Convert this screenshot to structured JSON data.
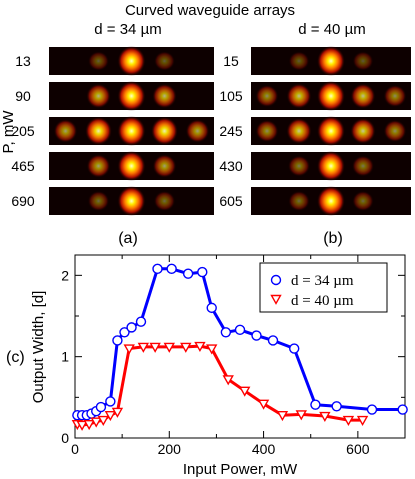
{
  "title": "Curved waveguide arrays",
  "left_label": "d = 34  µm",
  "right_label": "d = 40  µm",
  "p_label": "P, mW",
  "panel_a": "(a)",
  "panel_b": "(b)",
  "panel_c": "(c)",
  "left_powers": [
    "13",
    "90",
    "205",
    "465",
    "690"
  ],
  "right_powers": [
    "15",
    "105",
    "245",
    "430",
    "605"
  ],
  "left_spots": [
    [
      0,
      0.12,
      1.0,
      0.12,
      0
    ],
    [
      0,
      0.55,
      1.0,
      0.55,
      0
    ],
    [
      0.45,
      0.85,
      1.0,
      0.85,
      0.45
    ],
    [
      0,
      0.45,
      1.0,
      0.45,
      0
    ],
    [
      0,
      0.18,
      1.0,
      0.18,
      0
    ]
  ],
  "right_spots": [
    [
      0,
      0.1,
      1.0,
      0.1,
      0
    ],
    [
      0.35,
      0.6,
      1.0,
      0.6,
      0.35
    ],
    [
      0.35,
      0.65,
      1.0,
      0.65,
      0.35
    ],
    [
      0,
      0.25,
      1.0,
      0.25,
      0
    ],
    [
      0,
      0.18,
      1.0,
      0.18,
      0
    ]
  ],
  "chart_data": {
    "type": "line",
    "xlabel": "Input Power, mW",
    "ylabel": "Output Width, [d]",
    "xlim": [
      0,
      700
    ],
    "ylim": [
      0,
      2.25
    ],
    "xticks": [
      0,
      200,
      400,
      600
    ],
    "yticks": [
      0,
      1,
      2
    ],
    "grid": false,
    "legend_position": "top-right",
    "series": [
      {
        "name": "d = 34 µm",
        "color": "#0000ff",
        "marker": "circle",
        "x": [
          5,
          15,
          25,
          35,
          45,
          55,
          75,
          90,
          105,
          120,
          140,
          175,
          205,
          240,
          270,
          290,
          320,
          350,
          385,
          420,
          465,
          510,
          555,
          630,
          695
        ],
        "y": [
          0.28,
          0.28,
          0.28,
          0.3,
          0.33,
          0.38,
          0.45,
          1.2,
          1.3,
          1.36,
          1.43,
          2.08,
          2.08,
          2.02,
          2.04,
          1.6,
          1.3,
          1.33,
          1.26,
          1.2,
          1.1,
          0.41,
          0.39,
          0.35,
          0.35
        ]
      },
      {
        "name": "d = 40 µm",
        "color": "#ff0000",
        "marker": "triangle-down",
        "x": [
          5,
          15,
          30,
          45,
          60,
          75,
          90,
          115,
          145,
          170,
          200,
          235,
          265,
          290,
          325,
          360,
          400,
          440,
          480,
          530,
          580,
          610
        ],
        "y": [
          0.17,
          0.16,
          0.17,
          0.2,
          0.22,
          0.28,
          0.32,
          1.1,
          1.12,
          1.12,
          1.12,
          1.12,
          1.13,
          1.1,
          0.72,
          0.58,
          0.42,
          0.28,
          0.29,
          0.27,
          0.22,
          0.22
        ]
      }
    ]
  }
}
